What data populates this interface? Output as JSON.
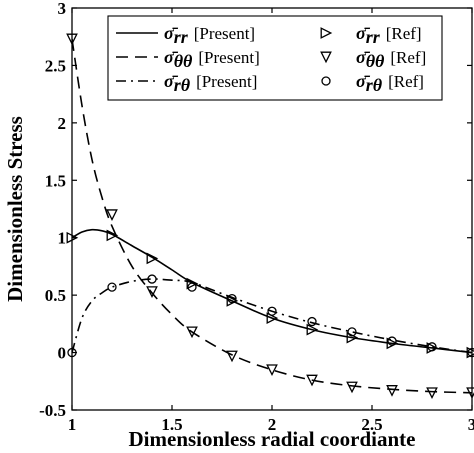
{
  "chart_data": {
    "type": "line",
    "xlabel": "Dimensionless radial coordiante",
    "ylabel": "Dimensionless Stress",
    "xlim": [
      1,
      3
    ],
    "ylim": [
      -0.5,
      3
    ],
    "xticks": [
      1,
      1.5,
      2,
      2.5,
      3
    ],
    "xtick_labels": [
      "1",
      "1.5",
      "2",
      "2.5",
      "3"
    ],
    "yticks": [
      -0.5,
      0,
      0.5,
      1,
      1.5,
      2,
      2.5,
      3
    ],
    "ytick_labels": [
      "-0.5",
      "0",
      "0.5",
      "1",
      "1.5",
      "2",
      "2.5",
      "3"
    ],
    "grid": false,
    "legend_position": "top-right",
    "series": [
      {
        "name": "σ̄rr [Present]",
        "sym": "σ̄",
        "sub": "rr",
        "tag": "[Present]",
        "style": "solid",
        "x": [
          1.0,
          1.05,
          1.1,
          1.15,
          1.2,
          1.3,
          1.4,
          1.5,
          1.6,
          1.8,
          2.0,
          2.2,
          2.4,
          2.6,
          2.8,
          3.0
        ],
        "y": [
          1.0,
          1.05,
          1.07,
          1.06,
          1.03,
          0.93,
          0.83,
          0.72,
          0.61,
          0.45,
          0.3,
          0.2,
          0.13,
          0.08,
          0.04,
          0.0
        ]
      },
      {
        "name": "σ̄θθ [Present]",
        "sym": "σ̄",
        "sub": "θθ",
        "tag": "[Present]",
        "style": "dashed",
        "x": [
          1.0,
          1.05,
          1.1,
          1.15,
          1.2,
          1.3,
          1.4,
          1.5,
          1.6,
          1.8,
          2.0,
          2.2,
          2.4,
          2.6,
          2.8,
          3.0
        ],
        "y": [
          2.73,
          2.15,
          1.68,
          1.35,
          1.1,
          0.75,
          0.52,
          0.33,
          0.18,
          -0.02,
          -0.15,
          -0.24,
          -0.29,
          -0.32,
          -0.34,
          -0.35
        ]
      },
      {
        "name": "σ̄rθ [Present]",
        "sym": "σ̄",
        "sub": "rθ",
        "tag": "[Present]",
        "style": "dashdot",
        "x": [
          1.0,
          1.05,
          1.1,
          1.15,
          1.2,
          1.3,
          1.4,
          1.5,
          1.6,
          1.8,
          2.0,
          2.2,
          2.4,
          2.6,
          2.8,
          3.0
        ],
        "y": [
          0.0,
          0.3,
          0.45,
          0.52,
          0.57,
          0.62,
          0.64,
          0.63,
          0.61,
          0.48,
          0.36,
          0.26,
          0.18,
          0.11,
          0.05,
          0.0
        ]
      },
      {
        "name": "σ̄rr [Ref]",
        "sym": "σ̄",
        "sub": "rr",
        "tag": "[Ref]",
        "marker": "triangle-right",
        "x": [
          1.0,
          1.2,
          1.4,
          1.6,
          1.8,
          2.0,
          2.2,
          2.4,
          2.6,
          2.8,
          3.0
        ],
        "y": [
          1.0,
          1.02,
          0.82,
          0.6,
          0.45,
          0.3,
          0.2,
          0.13,
          0.08,
          0.04,
          0.0
        ]
      },
      {
        "name": "σ̄θθ [Ref]",
        "sym": "σ̄",
        "sub": "θθ",
        "tag": "[Ref]",
        "marker": "triangle-down",
        "x": [
          1.0,
          1.2,
          1.4,
          1.6,
          1.8,
          2.0,
          2.2,
          2.4,
          2.6,
          2.8,
          3.0
        ],
        "y": [
          2.73,
          1.2,
          0.53,
          0.18,
          -0.03,
          -0.15,
          -0.24,
          -0.3,
          -0.33,
          -0.35,
          -0.35
        ]
      },
      {
        "name": "σ̄rθ [Ref]",
        "sym": "σ̄",
        "sub": "rθ",
        "tag": "[Ref]",
        "marker": "circle",
        "x": [
          1.0,
          1.2,
          1.4,
          1.6,
          1.8,
          2.0,
          2.2,
          2.4,
          2.6,
          2.8,
          3.0
        ],
        "y": [
          0.0,
          0.57,
          0.64,
          0.57,
          0.47,
          0.36,
          0.27,
          0.18,
          0.1,
          0.05,
          0.0
        ]
      }
    ]
  }
}
